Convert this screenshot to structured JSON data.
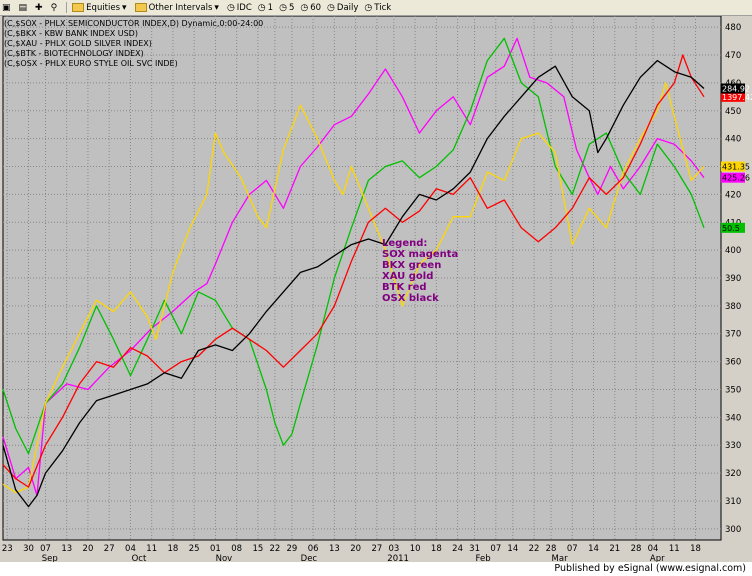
{
  "toolbar": {
    "equities_label": "Equities",
    "intervals_label": "Other Intervals",
    "idc_label": "IDC",
    "i1": "1",
    "i5": "5",
    "i60": "60",
    "daily_label": "Daily",
    "tick_label": "Tick"
  },
  "chart_data": {
    "type": "line",
    "title_lines": [
      "(C,$SOX - PHLX SEMICONDUCTOR INDEX,D) Dynamic,0:00-24:00",
      "(C,$BKX - KBW BANK INDEX USD)",
      "(C,$XAU - PHLX GOLD SILVER INDEX)",
      "(C,$BTK - BIOTECHNOLOGY INDEX)",
      "(C,$OSX - PHLX EURO STYLE OIL SVC INDE)"
    ],
    "ylim": [
      296,
      484
    ],
    "yticks": [
      300,
      310,
      320,
      330,
      340,
      350,
      360,
      370,
      380,
      390,
      400,
      410,
      420,
      430,
      440,
      450,
      460,
      470,
      480
    ],
    "xlim": [
      0,
      169
    ],
    "xticks": [
      {
        "i": 1,
        "l": "23"
      },
      {
        "i": 6,
        "l": "30"
      },
      {
        "i": 10,
        "l": "07"
      },
      {
        "i": 15,
        "l": "13"
      },
      {
        "i": 20,
        "l": "20"
      },
      {
        "i": 25,
        "l": "27"
      },
      {
        "i": 30,
        "l": "04"
      },
      {
        "i": 35,
        "l": "11"
      },
      {
        "i": 40,
        "l": "18"
      },
      {
        "i": 45,
        "l": "25"
      },
      {
        "i": 50,
        "l": "01"
      },
      {
        "i": 55,
        "l": "08"
      },
      {
        "i": 60,
        "l": "15"
      },
      {
        "i": 64,
        "l": "22"
      },
      {
        "i": 68,
        "l": "29"
      },
      {
        "i": 73,
        "l": "06"
      },
      {
        "i": 78,
        "l": "13"
      },
      {
        "i": 83,
        "l": "20"
      },
      {
        "i": 88,
        "l": "27"
      },
      {
        "i": 92,
        "l": "03"
      },
      {
        "i": 97,
        "l": "10"
      },
      {
        "i": 102,
        "l": "18"
      },
      {
        "i": 107,
        "l": "24"
      },
      {
        "i": 111,
        "l": "31"
      },
      {
        "i": 116,
        "l": "07"
      },
      {
        "i": 120,
        "l": "14"
      },
      {
        "i": 125,
        "l": "22"
      },
      {
        "i": 129,
        "l": "28"
      },
      {
        "i": 134,
        "l": "07"
      },
      {
        "i": 139,
        "l": "14"
      },
      {
        "i": 144,
        "l": "21"
      },
      {
        "i": 149,
        "l": "28"
      },
      {
        "i": 153,
        "l": "04"
      },
      {
        "i": 158,
        "l": "11"
      },
      {
        "i": 163,
        "l": "18"
      }
    ],
    "months": [
      {
        "i": 11,
        "l": "Sep"
      },
      {
        "i": 32,
        "l": "Oct"
      },
      {
        "i": 52,
        "l": "Nov"
      },
      {
        "i": 72,
        "l": "Dec"
      },
      {
        "i": 93,
        "l": "2011"
      },
      {
        "i": 113,
        "l": "Feb"
      },
      {
        "i": 131,
        "l": "Mar"
      },
      {
        "i": 154,
        "l": "Apr"
      }
    ],
    "series": [
      {
        "name": "SOX",
        "color": "#ff00ff",
        "last_label": "425.26",
        "points": [
          [
            0,
            333
          ],
          [
            3,
            318
          ],
          [
            6,
            322
          ],
          [
            8,
            312
          ],
          [
            10,
            345
          ],
          [
            15,
            352
          ],
          [
            20,
            350
          ],
          [
            25,
            358
          ],
          [
            30,
            364
          ],
          [
            35,
            372
          ],
          [
            40,
            378
          ],
          [
            45,
            385
          ],
          [
            48,
            388
          ],
          [
            50,
            395
          ],
          [
            54,
            410
          ],
          [
            58,
            420
          ],
          [
            62,
            425
          ],
          [
            66,
            415
          ],
          [
            70,
            430
          ],
          [
            74,
            437
          ],
          [
            78,
            445
          ],
          [
            82,
            448
          ],
          [
            86,
            456
          ],
          [
            90,
            465
          ],
          [
            94,
            455
          ],
          [
            98,
            442
          ],
          [
            102,
            450
          ],
          [
            106,
            455
          ],
          [
            110,
            445
          ],
          [
            114,
            462
          ],
          [
            118,
            466
          ],
          [
            121,
            476
          ],
          [
            124,
            462
          ],
          [
            128,
            460
          ],
          [
            132,
            455
          ],
          [
            135,
            436
          ],
          [
            138,
            426
          ],
          [
            140,
            420
          ],
          [
            143,
            430
          ],
          [
            146,
            422
          ],
          [
            150,
            430
          ],
          [
            154,
            440
          ],
          [
            158,
            438
          ],
          [
            162,
            432
          ],
          [
            165,
            426
          ]
        ]
      },
      {
        "name": "BKX",
        "color": "#00c000",
        "last_label": "50.5",
        "points": [
          [
            0,
            350
          ],
          [
            3,
            336
          ],
          [
            6,
            327
          ],
          [
            10,
            345
          ],
          [
            14,
            352
          ],
          [
            18,
            365
          ],
          [
            22,
            380
          ],
          [
            26,
            368
          ],
          [
            30,
            355
          ],
          [
            34,
            368
          ],
          [
            38,
            382
          ],
          [
            42,
            370
          ],
          [
            46,
            385
          ],
          [
            50,
            382
          ],
          [
            54,
            372
          ],
          [
            58,
            368
          ],
          [
            62,
            350
          ],
          [
            64,
            338
          ],
          [
            66,
            330
          ],
          [
            68,
            334
          ],
          [
            70,
            345
          ],
          [
            74,
            366
          ],
          [
            78,
            390
          ],
          [
            82,
            408
          ],
          [
            86,
            425
          ],
          [
            90,
            430
          ],
          [
            94,
            432
          ],
          [
            98,
            426
          ],
          [
            102,
            430
          ],
          [
            106,
            436
          ],
          [
            110,
            450
          ],
          [
            114,
            468
          ],
          [
            118,
            476
          ],
          [
            122,
            460
          ],
          [
            126,
            455
          ],
          [
            130,
            430
          ],
          [
            134,
            420
          ],
          [
            138,
            438
          ],
          [
            142,
            442
          ],
          [
            146,
            428
          ],
          [
            150,
            420
          ],
          [
            154,
            438
          ],
          [
            158,
            430
          ],
          [
            162,
            420
          ],
          [
            165,
            408
          ]
        ]
      },
      {
        "name": "XAU",
        "color": "#ffd700",
        "last_label": "431.35",
        "points": [
          [
            0,
            316
          ],
          [
            3,
            313
          ],
          [
            6,
            315
          ],
          [
            10,
            345
          ],
          [
            14,
            358
          ],
          [
            18,
            370
          ],
          [
            22,
            382
          ],
          [
            26,
            378
          ],
          [
            30,
            385
          ],
          [
            34,
            376
          ],
          [
            36,
            368
          ],
          [
            40,
            392
          ],
          [
            44,
            408
          ],
          [
            48,
            420
          ],
          [
            50,
            442
          ],
          [
            52,
            435
          ],
          [
            56,
            426
          ],
          [
            60,
            412
          ],
          [
            62,
            408
          ],
          [
            66,
            436
          ],
          [
            70,
            452
          ],
          [
            74,
            440
          ],
          [
            78,
            425
          ],
          [
            80,
            420
          ],
          [
            82,
            430
          ],
          [
            86,
            415
          ],
          [
            90,
            400
          ],
          [
            94,
            380
          ],
          [
            98,
            395
          ],
          [
            102,
            400
          ],
          [
            106,
            412
          ],
          [
            110,
            412
          ],
          [
            114,
            428
          ],
          [
            118,
            425
          ],
          [
            122,
            440
          ],
          [
            126,
            442
          ],
          [
            130,
            435
          ],
          [
            134,
            402
          ],
          [
            138,
            415
          ],
          [
            142,
            408
          ],
          [
            146,
            428
          ],
          [
            150,
            440
          ],
          [
            154,
            450
          ],
          [
            156,
            460
          ],
          [
            158,
            448
          ],
          [
            162,
            425
          ],
          [
            165,
            430
          ]
        ]
      },
      {
        "name": "BTK",
        "color": "#ff0000",
        "last_label": "1397.42",
        "points": [
          [
            0,
            323
          ],
          [
            3,
            318
          ],
          [
            6,
            315
          ],
          [
            10,
            330
          ],
          [
            14,
            340
          ],
          [
            18,
            352
          ],
          [
            22,
            360
          ],
          [
            26,
            358
          ],
          [
            30,
            365
          ],
          [
            34,
            362
          ],
          [
            38,
            356
          ],
          [
            42,
            360
          ],
          [
            46,
            362
          ],
          [
            50,
            368
          ],
          [
            54,
            372
          ],
          [
            58,
            368
          ],
          [
            62,
            364
          ],
          [
            66,
            358
          ],
          [
            70,
            364
          ],
          [
            74,
            370
          ],
          [
            78,
            380
          ],
          [
            82,
            396
          ],
          [
            86,
            410
          ],
          [
            90,
            415
          ],
          [
            94,
            410
          ],
          [
            98,
            414
          ],
          [
            102,
            422
          ],
          [
            106,
            420
          ],
          [
            110,
            426
          ],
          [
            114,
            415
          ],
          [
            118,
            418
          ],
          [
            122,
            408
          ],
          [
            126,
            403
          ],
          [
            130,
            408
          ],
          [
            134,
            415
          ],
          [
            138,
            426
          ],
          [
            142,
            420
          ],
          [
            146,
            426
          ],
          [
            150,
            438
          ],
          [
            154,
            452
          ],
          [
            158,
            460
          ],
          [
            160,
            470
          ],
          [
            162,
            462
          ],
          [
            165,
            455
          ]
        ]
      },
      {
        "name": "OSX",
        "color": "#000000",
        "last_label": "284.92",
        "points": [
          [
            0,
            330
          ],
          [
            3,
            314
          ],
          [
            6,
            308
          ],
          [
            8,
            312
          ],
          [
            10,
            320
          ],
          [
            14,
            328
          ],
          [
            18,
            338
          ],
          [
            22,
            346
          ],
          [
            26,
            348
          ],
          [
            30,
            350
          ],
          [
            34,
            352
          ],
          [
            38,
            356
          ],
          [
            42,
            354
          ],
          [
            46,
            364
          ],
          [
            50,
            366
          ],
          [
            54,
            364
          ],
          [
            58,
            370
          ],
          [
            62,
            378
          ],
          [
            66,
            385
          ],
          [
            70,
            392
          ],
          [
            74,
            394
          ],
          [
            78,
            398
          ],
          [
            82,
            402
          ],
          [
            86,
            404
          ],
          [
            90,
            402
          ],
          [
            94,
            412
          ],
          [
            98,
            420
          ],
          [
            102,
            418
          ],
          [
            106,
            422
          ],
          [
            110,
            428
          ],
          [
            114,
            440
          ],
          [
            118,
            448
          ],
          [
            122,
            455
          ],
          [
            126,
            462
          ],
          [
            130,
            466
          ],
          [
            134,
            455
          ],
          [
            138,
            450
          ],
          [
            140,
            435
          ],
          [
            142,
            440
          ],
          [
            146,
            452
          ],
          [
            150,
            462
          ],
          [
            154,
            468
          ],
          [
            158,
            464
          ],
          [
            162,
            462
          ],
          [
            165,
            458
          ]
        ]
      }
    ],
    "legend": {
      "title": "Legend:",
      "items": [
        "SOX magenta",
        "BKX green",
        "XAU gold",
        "BTK red",
        "OSX black"
      ]
    }
  },
  "footer": {
    "text": "Published by eSignal (www.esignal.com)"
  }
}
